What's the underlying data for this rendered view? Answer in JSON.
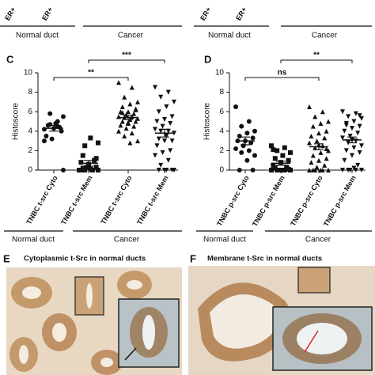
{
  "top": {
    "tick_labels": [
      "ER+",
      "ER+",
      "ER+",
      "ER+"
    ],
    "groups": [
      "Normal duct",
      "Cancer",
      "Normal duct",
      "Cancer"
    ]
  },
  "chart_data": [
    {
      "type": "scatter",
      "panel": "C",
      "ylabel": "Histoscore",
      "ylim": [
        0,
        10
      ],
      "yticks": [
        0,
        2,
        4,
        6,
        8,
        10
      ],
      "categories": [
        "TNBC t-src Cyto",
        "TNBC t-src Mem",
        "TNBC t-src Cyto",
        "TNBC t-src Mem"
      ],
      "values": [
        [
          4.2,
          4.5,
          5.8,
          5.5,
          4.8,
          4.6,
          4.0,
          4.3,
          3.5,
          4.4,
          3.2,
          3.0,
          5.0,
          4.7,
          0
        ],
        [
          0,
          0,
          0,
          0,
          0.1,
          0.2,
          0.3,
          0.5,
          0.8,
          1.0,
          0.3,
          0,
          0,
          2.5,
          2.8,
          3.3,
          1.5,
          1.2,
          0.6,
          0
        ],
        [
          9.0,
          8.5,
          7.5,
          7.0,
          6.8,
          6.5,
          6.2,
          6.0,
          6.0,
          5.8,
          5.7,
          5.5,
          5.5,
          5.4,
          5.3,
          5.2,
          5.0,
          5.0,
          4.8,
          4.6,
          4.5,
          4.3,
          4.0,
          3.8,
          3.5,
          3.0,
          2.8,
          5.9,
          6.3,
          4.9
        ],
        [
          8.5,
          8.0,
          7.5,
          7.0,
          6.5,
          6.0,
          5.5,
          5.2,
          5.0,
          4.8,
          4.5,
          4.2,
          4.0,
          4.0,
          3.8,
          3.5,
          3.2,
          3.0,
          3.0,
          2.5,
          2.0,
          1.8,
          1.5,
          1.0,
          0.5,
          0,
          0,
          0,
          0,
          0
        ]
      ],
      "means": [
        4.3,
        0.7,
        5.4,
        3.8
      ],
      "sems": [
        0.3,
        0.3,
        0.2,
        0.4
      ],
      "comparisons": [
        {
          "label": "**"
        },
        {
          "label": "***"
        }
      ],
      "groups": [
        "Normal duct",
        "Cancer"
      ]
    },
    {
      "type": "scatter",
      "panel": "D",
      "ylabel": "Histoscore",
      "ylim": [
        0,
        10
      ],
      "yticks": [
        0,
        2,
        4,
        6,
        8,
        10
      ],
      "categories": [
        "TNBC p-src Cyto",
        "TNBC p-src Mem",
        "TNBC p-src Cyto",
        "TNBC p-src Mem"
      ],
      "values": [
        [
          6.5,
          5.0,
          4.5,
          4.0,
          3.8,
          3.5,
          3.3,
          3.0,
          3.0,
          2.8,
          2.5,
          2.2,
          2.0,
          1.8,
          1.5,
          1.0,
          0,
          0
        ],
        [
          2.5,
          2.3,
          2.0,
          1.8,
          1.5,
          1.2,
          1.0,
          0.8,
          0.5,
          0.3,
          0,
          0,
          0,
          0,
          0,
          0,
          0.2,
          0.1,
          0,
          2.1
        ],
        [
          6.5,
          6.0,
          5.5,
          5.0,
          4.8,
          4.5,
          4.0,
          3.8,
          3.5,
          3.3,
          3.0,
          2.8,
          2.5,
          2.3,
          2.0,
          1.8,
          1.5,
          1.2,
          1.0,
          0.8,
          0.5,
          0.3,
          0,
          0,
          0,
          0,
          0,
          0,
          2.2,
          2.6
        ],
        [
          6.0,
          5.8,
          5.5,
          5.3,
          5.0,
          4.8,
          4.5,
          4.3,
          4.0,
          3.8,
          3.5,
          3.3,
          3.0,
          2.8,
          2.5,
          2.3,
          2.0,
          1.8,
          1.5,
          1.0,
          0.5,
          0,
          0,
          0,
          0,
          0,
          0.2,
          4.6,
          5.6,
          3.1
        ]
      ],
      "means": [
        3.0,
        0.7,
        2.4,
        3.1
      ],
      "sems": [
        0.4,
        0.2,
        0.3,
        0.3
      ],
      "comparisons": [
        {
          "label": "ns"
        },
        {
          "label": "**"
        }
      ],
      "groups": [
        "Normal duct",
        "Cancer"
      ]
    }
  ],
  "images": [
    {
      "panel": "E",
      "title": "Cytoplasmic t-Src in normal ducts"
    },
    {
      "panel": "F",
      "title": "Membrane t-Src in normal ducts"
    }
  ]
}
